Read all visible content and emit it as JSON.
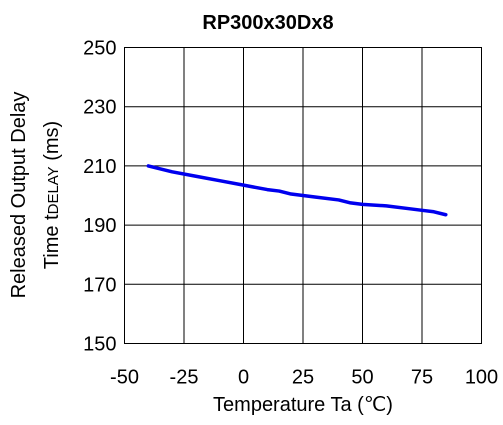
{
  "chart_data": {
    "type": "line",
    "title": "RP300x30Dx8",
    "xlabel": "Temperature Ta (℃)",
    "ylabel_line1": "Released Output Delay",
    "ylabel_line2_prefix": "Time t",
    "ylabel_line2_sub": "DELAY",
    "ylabel_line2_suffix": " (ms)",
    "xlim": [
      -50,
      100
    ],
    "ylim": [
      150,
      250
    ],
    "x_ticks": [
      -50,
      -25,
      0,
      25,
      50,
      75,
      100
    ],
    "y_ticks": [
      150,
      170,
      190,
      210,
      230,
      250
    ],
    "x_tick_labels": [
      "-50",
      "-25",
      "0",
      "25",
      "50",
      "75",
      "100"
    ],
    "y_tick_labels": [
      "150",
      "170",
      "190",
      "210",
      "230",
      "250"
    ],
    "grid": true,
    "series": [
      {
        "color": "#0000ee",
        "x": [
          -40,
          -30,
          -20,
          -10,
          0,
          10,
          15,
          20,
          30,
          40,
          45,
          50,
          60,
          70,
          75,
          80,
          85
        ],
        "y": [
          210,
          208,
          206.5,
          205,
          203.5,
          202,
          201.5,
          200.5,
          199.5,
          198.5,
          197.5,
          197,
          196.5,
          195.5,
          195,
          194.5,
          193.5
        ]
      }
    ]
  }
}
